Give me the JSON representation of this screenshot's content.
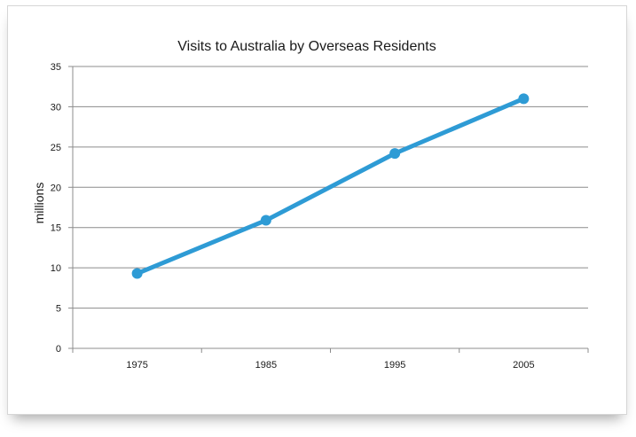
{
  "chart_data": {
    "type": "line",
    "title": "Visits to Australia by Overseas Residents",
    "xlabel": "",
    "ylabel": "millions",
    "categories": [
      "1975",
      "1985",
      "1995",
      "2005"
    ],
    "series": [
      {
        "values": [
          9.3,
          15.9,
          24.2,
          31.0
        ],
        "color": "#2E9BD5"
      }
    ],
    "ylim": [
      0,
      35
    ],
    "yticks": [
      0,
      5,
      10,
      15,
      20,
      25,
      30,
      35
    ],
    "grid": true,
    "legend": "none"
  }
}
